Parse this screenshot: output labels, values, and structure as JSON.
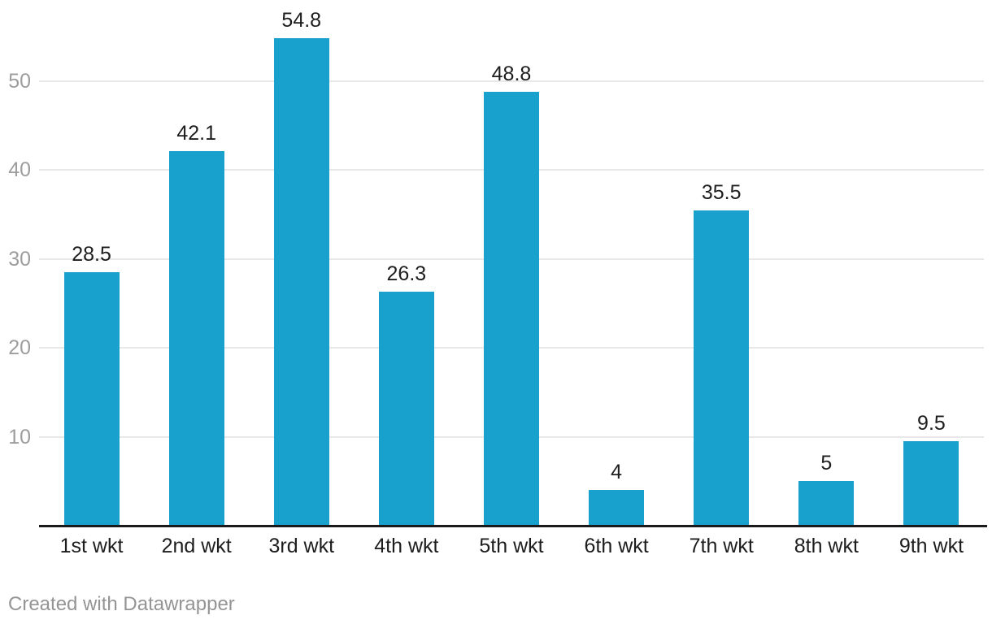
{
  "chart_data": {
    "type": "bar",
    "categories": [
      "1st wkt",
      "2nd wkt",
      "3rd wkt",
      "4th wkt",
      "5th wkt",
      "6th wkt",
      "7th wkt",
      "8th wkt",
      "9th wkt"
    ],
    "values": [
      28.5,
      42.1,
      54.8,
      26.3,
      48.8,
      4,
      35.5,
      5,
      9.5
    ],
    "value_labels": [
      "28.5",
      "42.1",
      "54.8",
      "26.3",
      "48.8",
      "4",
      "35.5",
      "5",
      "9.5"
    ],
    "title": "",
    "xlabel": "",
    "ylabel": "",
    "yticks": [
      10,
      20,
      30,
      40,
      50
    ],
    "ytick_labels": [
      "10",
      "20",
      "30",
      "40",
      "50"
    ],
    "ylim": [
      0,
      55
    ],
    "grid": "horizontal",
    "legend": "none"
  },
  "colors": {
    "bar": "#18a1cd",
    "grid": "#e8e8e8",
    "axis_line": "#1a1a1a",
    "y_tick_label": "#9d9d9d",
    "value_label": "#1d1d1d",
    "category_label": "#1d1d1d",
    "attribution": "#949494",
    "background": "#ffffff"
  },
  "footer": {
    "attribution": "Created with Datawrapper"
  }
}
